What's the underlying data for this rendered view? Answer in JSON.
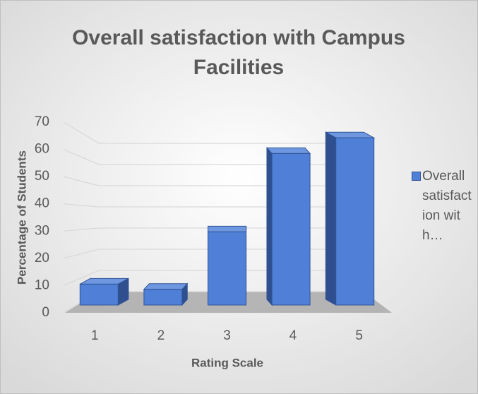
{
  "chart_data": {
    "type": "bar3d",
    "title": "Overall satisfaction with Campus Facilities",
    "x_label": "Rating Scale",
    "y_label": "Percentage of Students",
    "categories": [
      "1",
      "2",
      "3",
      "4",
      "5"
    ],
    "series": [
      {
        "name": "Overall satisfaction with…",
        "color": "#4f7fd6",
        "values": [
          8,
          6,
          28,
          58,
          64
        ]
      }
    ],
    "ylim": [
      0,
      70
    ],
    "yticks": [
      0,
      10,
      20,
      30,
      40,
      50,
      60,
      70
    ],
    "grid": true,
    "legend": "right"
  }
}
